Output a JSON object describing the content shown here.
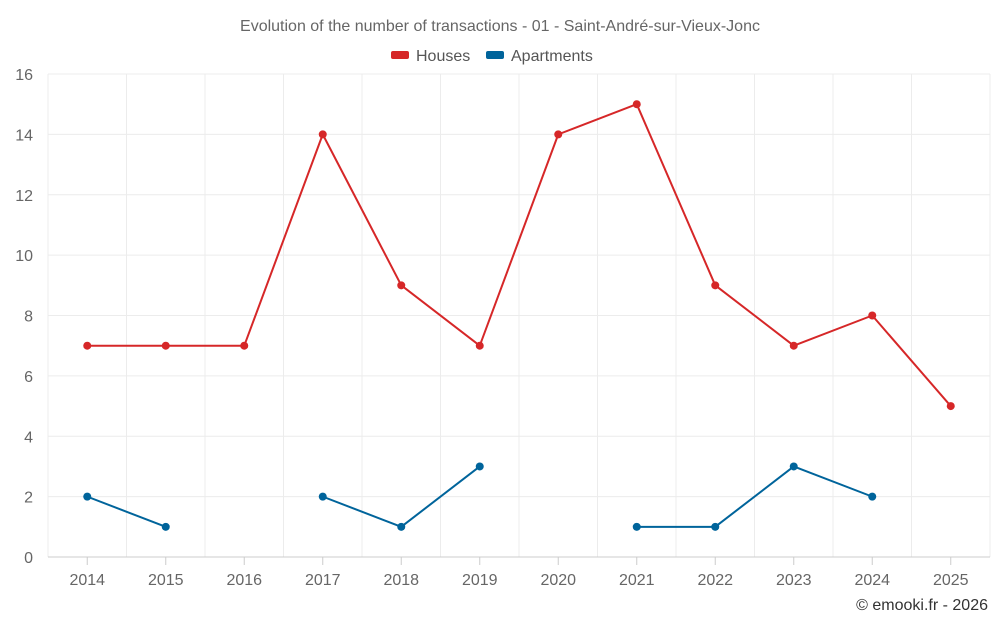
{
  "chart_data": {
    "type": "line",
    "title": "Evolution of the number of transactions - 01 - Saint-André-sur-Vieux-Jonc",
    "categories": [
      "2014",
      "2015",
      "2016",
      "2017",
      "2018",
      "2019",
      "2020",
      "2021",
      "2022",
      "2023",
      "2024",
      "2025"
    ],
    "ylim": [
      0,
      16
    ],
    "yticks": [
      0,
      2,
      4,
      6,
      8,
      10,
      12,
      14,
      16
    ],
    "grid": true,
    "legend_position": "top-center",
    "series": [
      {
        "name": "Houses",
        "color": "#d62728",
        "values": [
          7,
          7,
          7,
          14,
          9,
          7,
          14,
          15,
          9,
          7,
          8,
          5
        ]
      },
      {
        "name": "Apartments",
        "color": "#00649b",
        "values": [
          2,
          1,
          null,
          2,
          1,
          3,
          null,
          1,
          1,
          3,
          2,
          null
        ]
      }
    ],
    "credit": "© emooki.fr - 2026"
  }
}
